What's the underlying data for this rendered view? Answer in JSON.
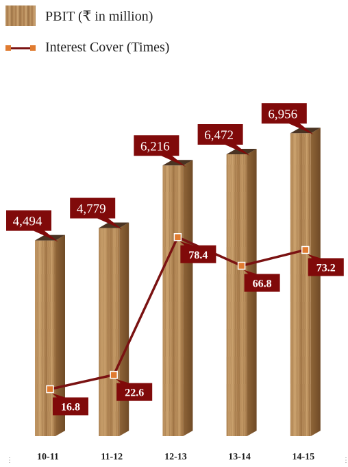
{
  "legend": {
    "bar_label": "PBIT (₹ in million)",
    "line_label": "Interest Cover (Times)"
  },
  "colors": {
    "callout_fill": "#800a0a",
    "line": "#7a1212",
    "marker": "#e07b30",
    "wood_light": "#c19a68",
    "wood_dark": "#8a6238"
  },
  "chart_data": {
    "type": "bar",
    "categories": [
      "10-11",
      "11-12",
      "12-13",
      "13-14",
      "14-15"
    ],
    "series": [
      {
        "name": "PBIT (₹ in million)",
        "type": "bar",
        "values": [
          4494,
          4779,
          6216,
          6472,
          6956
        ],
        "labels": [
          "4,494",
          "4,779",
          "6,216",
          "6,472",
          "6,956"
        ]
      },
      {
        "name": "Interest Cover (Times)",
        "type": "line",
        "values": [
          16.8,
          22.6,
          78.4,
          66.8,
          73.2
        ],
        "labels": [
          "16.8",
          "22.6",
          "78.4",
          "66.8",
          "73.2"
        ]
      }
    ],
    "grid": false,
    "legend_position": "top-left"
  }
}
